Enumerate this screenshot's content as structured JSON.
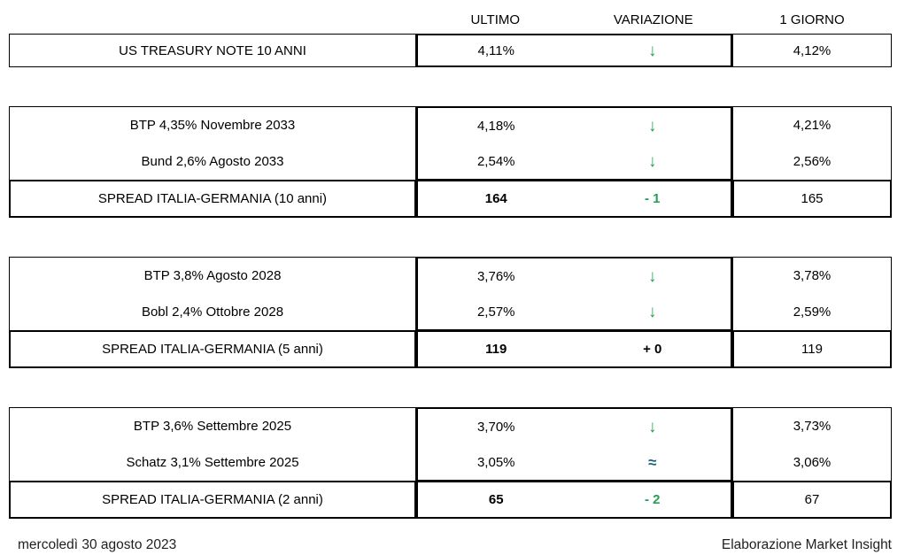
{
  "colors": {
    "positive_green": "#23A055",
    "neutral_teal": "#16657D",
    "border_black": "#000000",
    "text_black": "#000000"
  },
  "header": {
    "ultimo": "ULTIMO",
    "variazione": "VARIAZIONE",
    "giorno": "1 GIORNO"
  },
  "blocks": [
    {
      "rows": [
        {
          "label": "US TREASURY NOTE 10 ANNI",
          "ultimo": "4,11%",
          "variazione": "↓",
          "variazione_dir": "down",
          "giorno": "4,12%"
        }
      ]
    },
    {
      "rows": [
        {
          "label": "BTP 4,35% Novembre 2033",
          "ultimo": "4,18%",
          "variazione": "↓",
          "variazione_dir": "down",
          "giorno": "4,21%"
        },
        {
          "label": "Bund 2,6% Agosto 2033",
          "ultimo": "2,54%",
          "variazione": "↓",
          "variazione_dir": "down",
          "giorno": "2,56%"
        }
      ],
      "spread": {
        "label": "SPREAD ITALIA-GERMANIA (10 anni)",
        "ultimo": "164",
        "variazione": "- 1",
        "variazione_color": "green",
        "giorno": "165"
      }
    },
    {
      "rows": [
        {
          "label": "BTP 3,8% Agosto 2028",
          "ultimo": "3,76%",
          "variazione": "↓",
          "variazione_dir": "down",
          "giorno": "3,78%"
        },
        {
          "label": "Bobl 2,4% Ottobre 2028",
          "ultimo": "2,57%",
          "variazione": "↓",
          "variazione_dir": "down",
          "giorno": "2,59%"
        }
      ],
      "spread": {
        "label": "SPREAD ITALIA-GERMANIA (5 anni)",
        "ultimo": "119",
        "variazione": "+ 0",
        "variazione_color": "black",
        "giorno": "119"
      }
    },
    {
      "rows": [
        {
          "label": "BTP 3,6% Settembre 2025",
          "ultimo": "3,70%",
          "variazione": "↓",
          "variazione_dir": "down",
          "giorno": "3,73%"
        },
        {
          "label": "Schatz 3,1% Settembre 2025",
          "ultimo": "3,05%",
          "variazione": "≈",
          "variazione_dir": "flat",
          "giorno": "3,06%"
        }
      ],
      "spread": {
        "label": "SPREAD ITALIA-GERMANIA (2 anni)",
        "ultimo": "65",
        "variazione": "- 2",
        "variazione_color": "green",
        "giorno": "67"
      }
    }
  ],
  "footer": {
    "date": "mercoledì 30 agosto 2023",
    "credit": "Elaborazione Market Insight"
  },
  "chart_data": {
    "type": "table",
    "columns": [
      "",
      "ULTIMO",
      "VARIAZIONE",
      "1 GIORNO"
    ],
    "rows": [
      [
        "US TREASURY NOTE 10 ANNI",
        "4,11%",
        "↓",
        "4,12%"
      ],
      [
        "BTP 4,35% Novembre 2033",
        "4,18%",
        "↓",
        "4,21%"
      ],
      [
        "Bund 2,6% Agosto 2033",
        "2,54%",
        "↓",
        "2,56%"
      ],
      [
        "SPREAD ITALIA-GERMANIA (10 anni)",
        "164",
        "- 1",
        "165"
      ],
      [
        "BTP 3,8% Agosto 2028",
        "3,76%",
        "↓",
        "3,78%"
      ],
      [
        "Bobl 2,4% Ottobre 2028",
        "2,57%",
        "↓",
        "2,59%"
      ],
      [
        "SPREAD ITALIA-GERMANIA (5 anni)",
        "119",
        "+ 0",
        "119"
      ],
      [
        "BTP 3,6% Settembre 2025",
        "3,70%",
        "↓",
        "3,73%"
      ],
      [
        "Schatz 3,1% Settembre 2025",
        "3,05%",
        "≈",
        "3,06%"
      ],
      [
        "SPREAD ITALIA-GERMANIA (2 anni)",
        "65",
        "- 2",
        "67"
      ]
    ],
    "notes": "Spread ULTIMO values are bold; down-arrows and negative spread changes are green; '≈' is teal; '+ 0' is black bold."
  }
}
